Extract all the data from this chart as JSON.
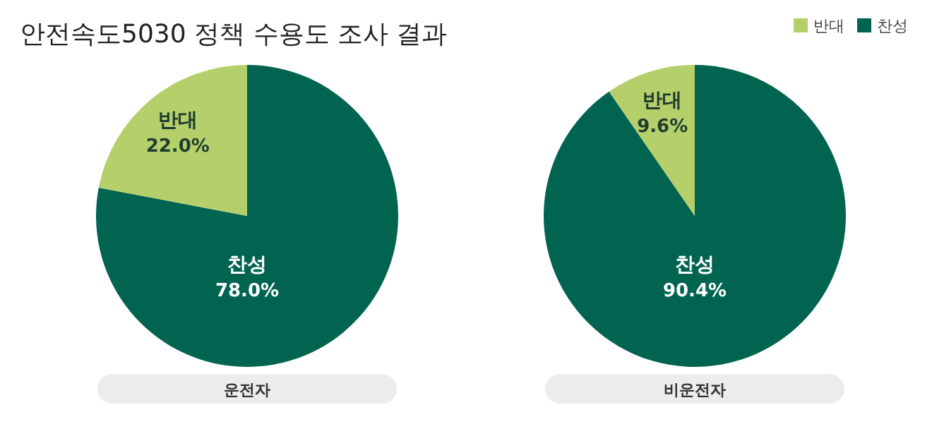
{
  "chart_data": [
    {
      "type": "pie",
      "title": "안전속도5030 정책 수용도 조사 결과",
      "xlabel": "운전자",
      "categories": [
        "반대",
        "찬성"
      ],
      "values": [
        22.0,
        78.0
      ],
      "colors": [
        "#b5cf6b",
        "#006450"
      ],
      "value_labels": [
        "22.0%",
        "78.0%"
      ]
    },
    {
      "type": "pie",
      "xlabel": "비운전자",
      "categories": [
        "반대",
        "찬성"
      ],
      "values": [
        9.6,
        90.4
      ],
      "colors": [
        "#b5cf6b",
        "#006450"
      ],
      "value_labels": [
        "9.6%",
        "90.4%"
      ],
      "legend": "top right"
    }
  ]
}
